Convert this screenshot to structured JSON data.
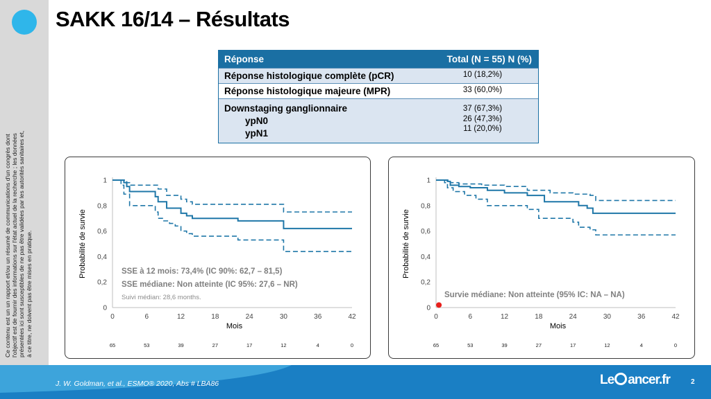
{
  "slide": {
    "title": "SAKK 16/14 – Résultats",
    "disclaimer": "Ce contenu est un un rapport et/ou un résumé de communications d'un congrès dont l'objectif est de fournir des informations sur l'état actuel de la recherche ; les données présentées ici sont susceptibles de ne pas être validées par les autorités sanitaires et, à ce titre, ne doivent pas être mises en pratique.",
    "citation": "J. W. Goldman, et al., ESMO® 2020, Abs # LBA86",
    "brand_prefix": "Le",
    "brand_suffix": "ancer.fr",
    "page_number": "2",
    "colors": {
      "brand_blue": "#1a6fa3",
      "accent_cyan": "#2fb6ea",
      "curve": "#1f77a8",
      "marker": "#e8201c"
    }
  },
  "table": {
    "header": [
      "Réponse",
      "Total (N = 55) N (%)"
    ],
    "rows": [
      {
        "label": "Réponse histologique complète (pCR)",
        "value": "10 (18,2%)"
      },
      {
        "label": "Réponse histologique majeure (MPR)",
        "value": "33 (60,0%)"
      },
      {
        "label": "Downstaging ganglionnaire",
        "value": "37 (67,3%)"
      },
      {
        "label": "ypN0",
        "value": "26 (47,3%)"
      },
      {
        "label": "ypN1",
        "value": "11 (20,0%)"
      }
    ]
  },
  "chart_data": [
    {
      "type": "line",
      "xlabel": "Mois",
      "ylabel": "Probabilité de survie",
      "xlim": [
        0,
        42
      ],
      "ylim": [
        0,
        1
      ],
      "x_ticks": [
        0,
        6,
        12,
        18,
        24,
        30,
        36,
        42
      ],
      "x_tick_labels": [
        "0",
        "6",
        "12",
        "18",
        "24",
        "30",
        "36",
        "42"
      ],
      "y_ticks": [
        0,
        0.2,
        0.4,
        0.6,
        0.8,
        1
      ],
      "y_tick_labels": [
        "0",
        "0,2",
        "0,4",
        "0,6",
        "0,8",
        "1"
      ],
      "grid": false,
      "at_risk": [
        "65",
        "53",
        "39",
        "27",
        "17",
        "12",
        "4",
        "0"
      ],
      "annotations": [
        "SSE à 12 mois: 73,4% (IC 90%: 62,7 – 81,5)",
        "SSE médiane: Non atteinte (IC 95%: 27,6 – NR)",
        "Suivi médian: 28,6 months."
      ],
      "series": [
        {
          "style": "solid",
          "points": [
            [
              0,
              1
            ],
            [
              1.5,
              1
            ],
            [
              2,
              0.98
            ],
            [
              2.5,
              0.95
            ],
            [
              3,
              0.91
            ],
            [
              7,
              0.91
            ],
            [
              7.5,
              0.87
            ],
            [
              8,
              0.83
            ],
            [
              9,
              0.83
            ],
            [
              9.5,
              0.78
            ],
            [
              11,
              0.78
            ],
            [
              12,
              0.74
            ],
            [
              13,
              0.72
            ],
            [
              14,
              0.7
            ],
            [
              21,
              0.7
            ],
            [
              22,
              0.68
            ],
            [
              30,
              0.68
            ],
            [
              30,
              0.62
            ],
            [
              42,
              0.62
            ]
          ]
        },
        {
          "style": "dashed",
          "points": [
            [
              0,
              1
            ],
            [
              2,
              1
            ],
            [
              2.5,
              0.98
            ],
            [
              3,
              0.96
            ],
            [
              7.5,
              0.96
            ],
            [
              8,
              0.93
            ],
            [
              9,
              0.93
            ],
            [
              9.5,
              0.88
            ],
            [
              11,
              0.88
            ],
            [
              12,
              0.85
            ],
            [
              13,
              0.83
            ],
            [
              14,
              0.81
            ],
            [
              30,
              0.81
            ],
            [
              30,
              0.75
            ],
            [
              42,
              0.75
            ]
          ]
        },
        {
          "style": "dashed",
          "points": [
            [
              0,
              1
            ],
            [
              1.5,
              0.96
            ],
            [
              2,
              0.89
            ],
            [
              3,
              0.8
            ],
            [
              7,
              0.8
            ],
            [
              7.5,
              0.75
            ],
            [
              8,
              0.7
            ],
            [
              9,
              0.68
            ],
            [
              10,
              0.66
            ],
            [
              11,
              0.64
            ],
            [
              12,
              0.6
            ],
            [
              13,
              0.58
            ],
            [
              14,
              0.56
            ],
            [
              21,
              0.56
            ],
            [
              22,
              0.53
            ],
            [
              30,
              0.53
            ],
            [
              30,
              0.44
            ],
            [
              42,
              0.44
            ]
          ]
        }
      ]
    },
    {
      "type": "line",
      "xlabel": "Mois",
      "ylabel": "Probabilité de survie",
      "xlim": [
        0,
        42
      ],
      "ylim": [
        0,
        1
      ],
      "x_ticks": [
        0,
        6,
        12,
        18,
        24,
        30,
        36,
        42
      ],
      "x_tick_labels": [
        "0",
        "6",
        "12",
        "18",
        "24",
        "30",
        "36",
        "42"
      ],
      "y_ticks": [
        0,
        0.2,
        0.4,
        0.6,
        0.8,
        1
      ],
      "y_tick_labels": [
        "0",
        "0,2",
        "0,4",
        "0,6",
        "0,8",
        "1"
      ],
      "grid": false,
      "at_risk": [
        "65",
        "53",
        "39",
        "27",
        "17",
        "12",
        "4",
        "0"
      ],
      "annotations": [
        "Survie médiane: Non atteinte (95% IC: NA – NA)"
      ],
      "marker": [
        0.5,
        0.02
      ],
      "series": [
        {
          "style": "solid",
          "points": [
            [
              0,
              1
            ],
            [
              2,
              0.99
            ],
            [
              2.5,
              0.96
            ],
            [
              4,
              0.95
            ],
            [
              6,
              0.94
            ],
            [
              9,
              0.92
            ],
            [
              12,
              0.9
            ],
            [
              16,
              0.88
            ],
            [
              19,
              0.83
            ],
            [
              24,
              0.83
            ],
            [
              25,
              0.8
            ],
            [
              26.5,
              0.78
            ],
            [
              27.5,
              0.74
            ],
            [
              42,
              0.74
            ]
          ]
        },
        {
          "style": "dashed",
          "points": [
            [
              0,
              1
            ],
            [
              2,
              1
            ],
            [
              2.5,
              0.98
            ],
            [
              4,
              0.97
            ],
            [
              8,
              0.96
            ],
            [
              12,
              0.95
            ],
            [
              16,
              0.92
            ],
            [
              20,
              0.9
            ],
            [
              24,
              0.89
            ],
            [
              27,
              0.88
            ],
            [
              28,
              0.84
            ],
            [
              42,
              0.84
            ]
          ]
        },
        {
          "style": "dashed",
          "points": [
            [
              0,
              1
            ],
            [
              1.5,
              0.98
            ],
            [
              2,
              0.94
            ],
            [
              3,
              0.91
            ],
            [
              5,
              0.88
            ],
            [
              7,
              0.85
            ],
            [
              9,
              0.8
            ],
            [
              14,
              0.8
            ],
            [
              16,
              0.77
            ],
            [
              18,
              0.7
            ],
            [
              22,
              0.7
            ],
            [
              24,
              0.67
            ],
            [
              25,
              0.63
            ],
            [
              27,
              0.61
            ],
            [
              28,
              0.57
            ],
            [
              42,
              0.57
            ]
          ]
        }
      ]
    }
  ]
}
